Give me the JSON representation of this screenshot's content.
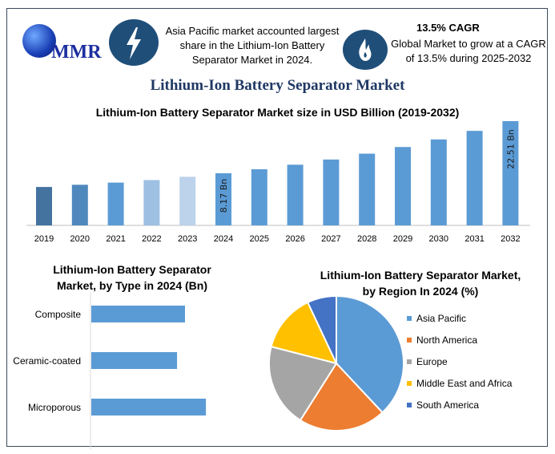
{
  "header": {
    "logo_text": "MMR",
    "info1": "Asia Pacific market accounted largest share in the Lithium-Ion Battery Separator Market in 2024.",
    "info2_title": "13.5% CAGR",
    "info2": "Global Market to grow at a CAGR of 13.5% during 2025-2032",
    "icon1": "lightning-icon",
    "icon2": "flame-icon",
    "title": "Lithium-Ion Battery Separator Market"
  },
  "colors": {
    "accent": "#1f4e79",
    "bar": "#5b9bd5",
    "orange": "#ed7d31",
    "gray": "#a5a5a5",
    "yellow": "#ffc000",
    "darkblue": "#4472c4"
  },
  "chart_data": [
    {
      "type": "bar",
      "title": "Lithium-Ion Battery Separator Market size in USD Billion (2019-2032)",
      "categories": [
        "2019",
        "2020",
        "2021",
        "2022",
        "2023",
        "2024",
        "2025",
        "2026",
        "2027",
        "2028",
        "2029",
        "2030",
        "2031",
        "2032"
      ],
      "values": [
        4.4,
        5.0,
        5.6,
        6.3,
        7.2,
        8.17,
        9.27,
        10.52,
        11.95,
        13.56,
        15.39,
        17.47,
        19.83,
        22.51
      ],
      "bar_colors": [
        "#44739f",
        "#4f88bd",
        "#5b9bd5",
        "#9dc0e3",
        "#bdd3ec",
        "#5b9bd5",
        "#5b9bd5",
        "#5b9bd5",
        "#5b9bd5",
        "#5b9bd5",
        "#5b9bd5",
        "#5b9bd5",
        "#5b9bd5",
        "#5b9bd5"
      ],
      "data_labels": {
        "2024": "8.17 Bn",
        "2032": "22.51 Bn"
      },
      "grid": false
    },
    {
      "type": "bar",
      "orientation": "horizontal",
      "title": "Lithium-Ion Battery Separator Market, by Type in 2024 (Bn)",
      "categories": [
        "Composite",
        "Ceramic-coated",
        "Microporous"
      ],
      "values": [
        2.6,
        2.38,
        3.18
      ]
    },
    {
      "type": "pie",
      "title": "Lithium-Ion Battery Separator Market, by Region In 2024 (%)",
      "categories": [
        "Asia Pacific",
        "North America",
        "Europe",
        "Middle East and Africa",
        "South America"
      ],
      "values": [
        38,
        21,
        20,
        14,
        7
      ],
      "colors": [
        "#5b9bd5",
        "#ed7d31",
        "#a5a5a5",
        "#ffc000",
        "#4472c4"
      ],
      "legend": "right"
    }
  ]
}
